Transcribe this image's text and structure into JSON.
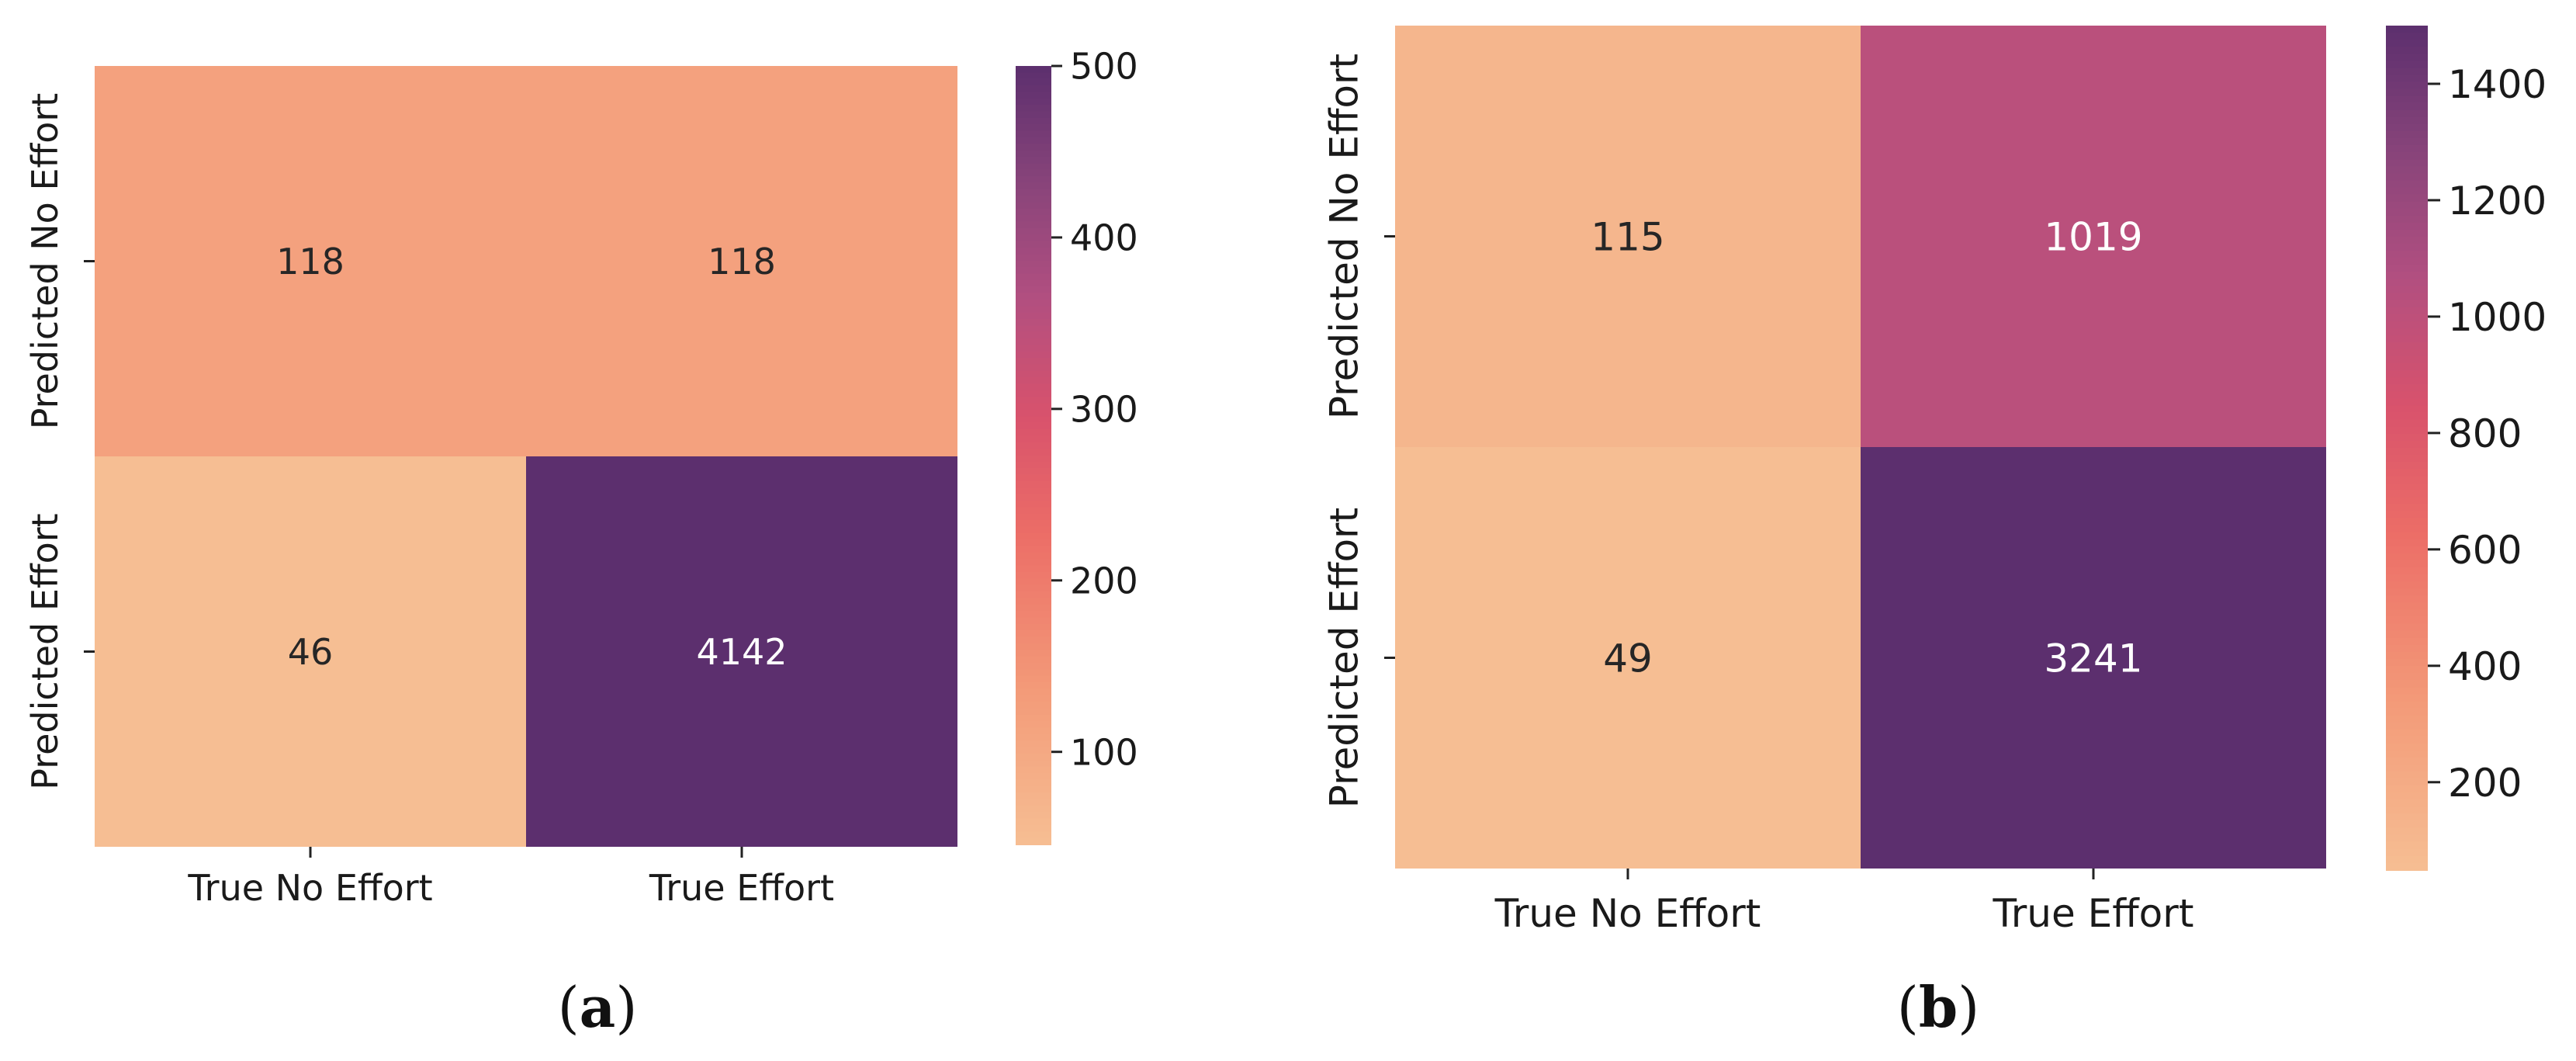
{
  "figure": {
    "captions": [
      {
        "open": "(",
        "letter": "a",
        "close": ")"
      },
      {
        "open": "(",
        "letter": "b",
        "close": ")"
      }
    ]
  },
  "chart_data": [
    {
      "type": "heatmap",
      "colormap": "flare",
      "x_categories": [
        "True No Effort",
        "True Effort"
      ],
      "y_categories": [
        "Predicted No Effort",
        "Predicted Effort"
      ],
      "values": [
        [
          118,
          118
        ],
        [
          46,
          4142
        ]
      ],
      "color_range": [
        46,
        500
      ],
      "colorbar_ticks": [
        100,
        200,
        300,
        400,
        500
      ],
      "grid": false
    },
    {
      "type": "heatmap",
      "colormap": "flare",
      "x_categories": [
        "True No Effort",
        "True Effort"
      ],
      "y_categories": [
        "Predicted No Effort",
        "Predicted Effort"
      ],
      "values": [
        [
          115,
          1019
        ],
        [
          49,
          3241
        ]
      ],
      "color_range": [
        49,
        1500
      ],
      "colorbar_ticks": [
        200,
        400,
        600,
        800,
        1000,
        1200,
        1400
      ],
      "grid": false
    }
  ]
}
